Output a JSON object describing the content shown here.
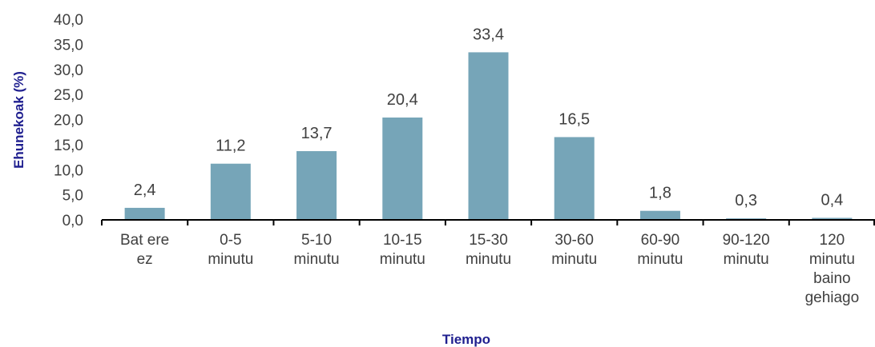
{
  "colors": {
    "bar": "#76a5b8",
    "axis_title": "#1f1f8f",
    "axis_line": "#000000"
  },
  "chart_data": {
    "type": "bar",
    "categories": [
      [
        "Bat ere",
        "ez"
      ],
      [
        "0-5",
        "minutu"
      ],
      [
        "5-10",
        "minutu"
      ],
      [
        "10-15",
        "minutu"
      ],
      [
        "15-30",
        "minutu"
      ],
      [
        "30-60",
        "minutu"
      ],
      [
        "60-90",
        "minutu"
      ],
      [
        "90-120",
        "minutu"
      ],
      [
        "120",
        "minutu",
        "baino",
        "gehiago"
      ]
    ],
    "values": [
      2.4,
      11.2,
      13.7,
      20.4,
      33.4,
      16.5,
      1.8,
      0.3,
      0.4
    ],
    "value_labels": [
      "2,4",
      "11,2",
      "13,7",
      "20,4",
      "33,4",
      "16,5",
      "1,8",
      "0,3",
      "0,4"
    ],
    "xlabel": "Tiempo",
    "ylabel": "Ehunekoak (%)",
    "ylim": [
      0,
      40
    ],
    "yticks": [
      "0,0",
      "5,0",
      "10,0",
      "15,0",
      "20,0",
      "25,0",
      "30,0",
      "35,0",
      "40,0"
    ],
    "grid": false
  }
}
